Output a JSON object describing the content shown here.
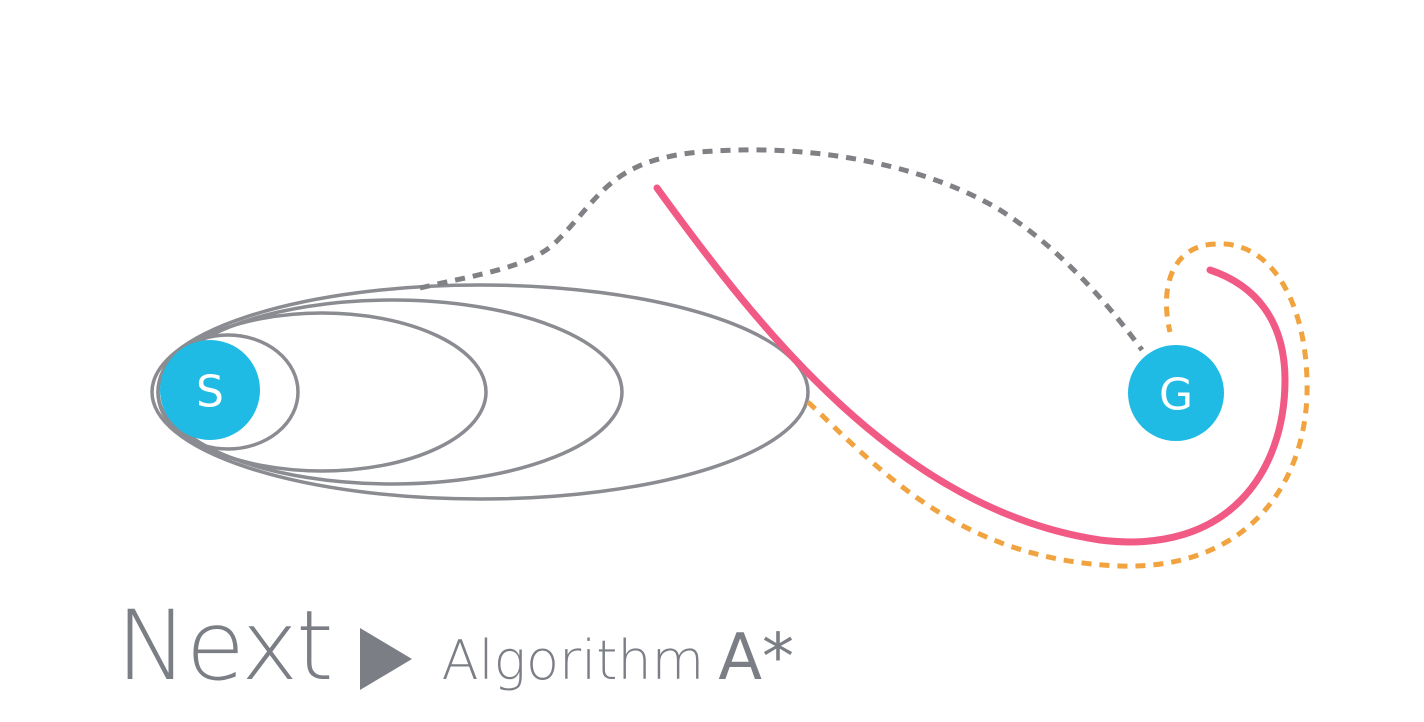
{
  "nodes": {
    "start": {
      "label": "S",
      "color": "#1fbbe4"
    },
    "goal": {
      "label": "G",
      "color": "#1fbbe4"
    }
  },
  "colors": {
    "ellipses": "#8a8c91",
    "dashed_path": "#808185",
    "solid_path": "#f25a86",
    "orange_dashed_path": "#f0a33e",
    "caption": "#7b7f85"
  },
  "caption": {
    "next": "Next",
    "arrow_icon": "play-triangle-icon",
    "algorithm": "Algorithm",
    "name": "A*"
  }
}
